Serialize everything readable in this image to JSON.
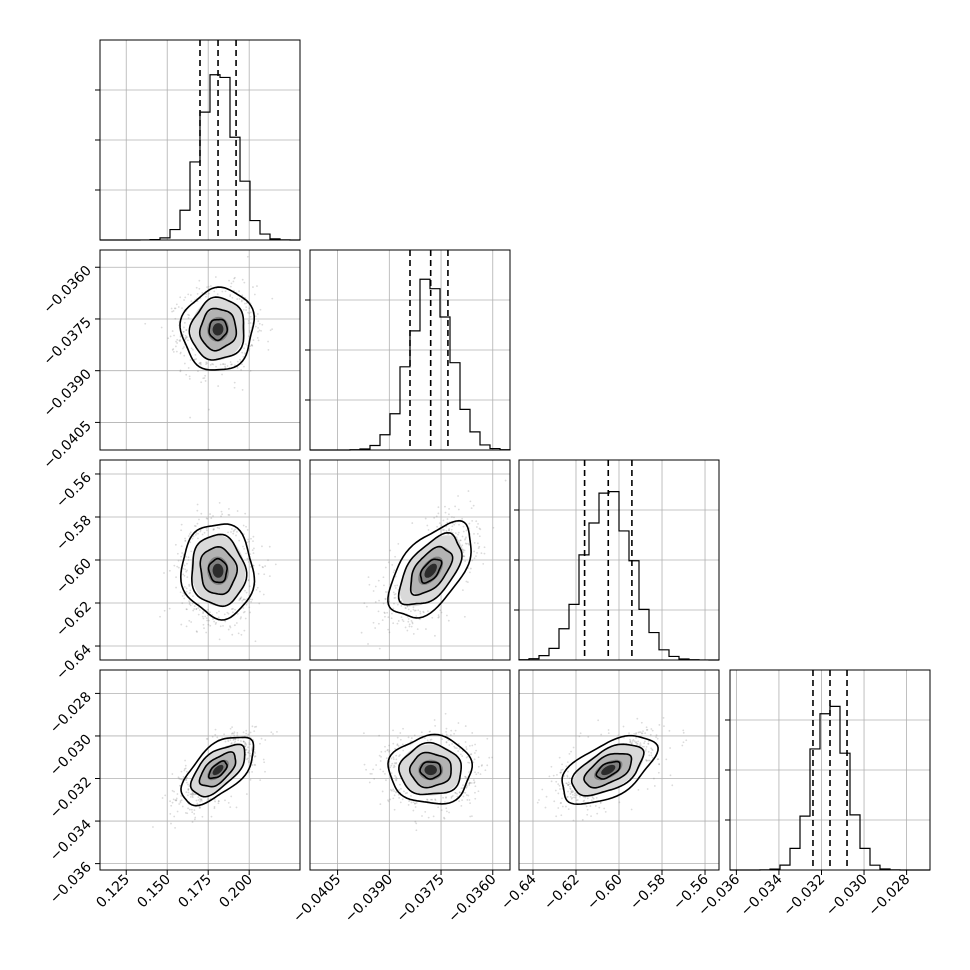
{
  "chart_data": {
    "type": "corner",
    "title": "",
    "parameters": [
      {
        "range": [
          0.109,
          0.231
        ],
        "ticks": [
          0.125,
          0.15,
          0.175,
          0.2
        ],
        "tick_labels": [
          "0.125",
          "0.150",
          "0.175",
          "0.200"
        ],
        "quantiles": [
          0.17,
          0.181,
          0.192
        ],
        "mean": 0.181,
        "sd": 0.011
      },
      {
        "range": [
          -0.0413,
          -0.0355
        ],
        "ticks": [
          -0.0405,
          -0.039,
          -0.0375,
          -0.036
        ],
        "tick_labels": [
          "−0.0405",
          "−0.0390",
          "−0.0375",
          "−0.0360"
        ],
        "quantiles": [
          -0.0384,
          -0.0378,
          -0.0373
        ],
        "mean": -0.0378,
        "sd": 0.0006
      },
      {
        "range": [
          -0.6465,
          -0.5535
        ],
        "ticks": [
          -0.64,
          -0.62,
          -0.6,
          -0.58,
          -0.56
        ],
        "tick_labels": [
          "−0.64",
          "−0.62",
          "−0.60",
          "−0.58",
          "−0.56"
        ],
        "y_tick_labels": [
          "−0.64",
          "−0.62",
          "−0.60",
          "−0.58",
          "−0.56"
        ],
        "quantiles": [
          -0.616,
          -0.605,
          -0.594
        ],
        "mean": -0.605,
        "sd": 0.011
      },
      {
        "range": [
          -0.0363,
          -0.0269
        ],
        "ticks": [
          -0.036,
          -0.034,
          -0.032,
          -0.03,
          -0.028
        ],
        "tick_labels": [
          "−0.036",
          "−0.034",
          "−0.032",
          "−0.030",
          "−0.028"
        ],
        "quantiles": [
          -0.0324,
          -0.0316,
          -0.0308
        ],
        "mean": -0.0316,
        "sd": 0.0008
      }
    ],
    "correlations": {
      "1-0": 0.05,
      "2-0": -0.05,
      "2-1": 0.55,
      "3-0": 0.6,
      "3-1": 0.0,
      "3-2": 0.55
    },
    "contour_levels_sigma": [
      0.5,
      1.0,
      1.5,
      2.0
    ],
    "grid": true,
    "colors": {
      "points": "#7f7f7f",
      "contour": "#000000",
      "fill_dark": "#000000"
    }
  }
}
